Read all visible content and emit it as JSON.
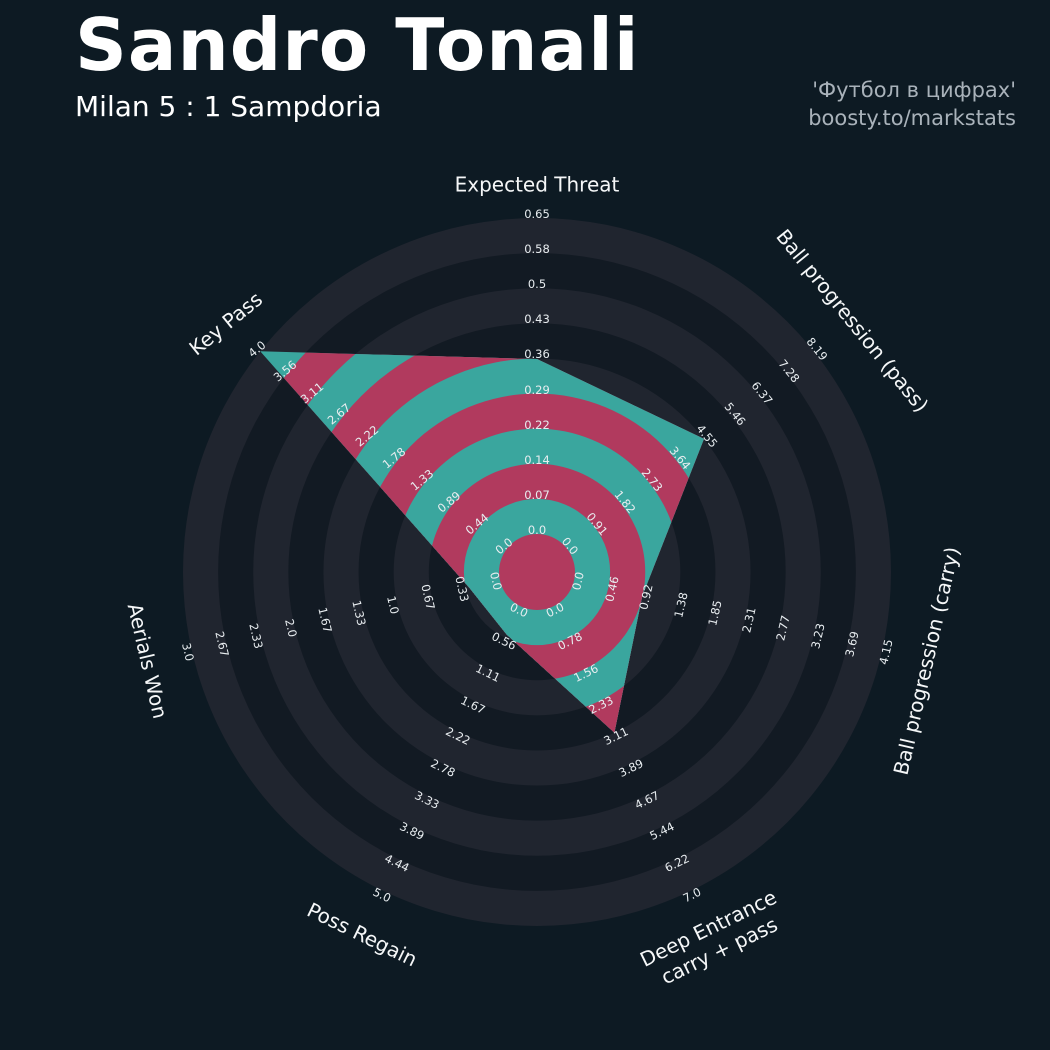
{
  "header": {
    "title": "Sandro Tonali",
    "subtitle": "Milan 5 : 1 Sampdoria",
    "credit_line1": "'Футбол в цифрах'",
    "credit_line2": "boosty.to/markstats"
  },
  "chart_data": {
    "type": "radar",
    "title": "Sandro Tonali",
    "subtitle": "Milan 5 : 1 Sampdoria",
    "ring_count": 9,
    "params": [
      {
        "label": "Expected Threat",
        "value": 0.36,
        "ticks": [
          "0.0",
          "0.07",
          "0.14",
          "0.22",
          "0.29",
          "0.36",
          "0.43",
          "0.5",
          "0.58",
          "0.65"
        ],
        "angle_deg": 90,
        "label_rotation": 0,
        "label_radius": 387
      },
      {
        "label": "Ball progression (pass)",
        "value": 4.55,
        "ticks": [
          "0.0",
          "0.91",
          "1.82",
          "2.73",
          "3.64",
          "4.55",
          "5.46",
          "6.37",
          "7.28",
          "8.19"
        ],
        "angle_deg": 38.57,
        "label_rotation": 51,
        "label_radius": 403
      },
      {
        "label": "Ball progression (carry)",
        "value": 0.92,
        "ticks": [
          "0.0",
          "0.46",
          "0.92",
          "1.38",
          "1.85",
          "2.31",
          "2.77",
          "3.23",
          "3.69",
          "4.15"
        ],
        "angle_deg": -12.86,
        "label_rotation": -77,
        "label_radius": 400
      },
      {
        "label": "Deep Entrance carry + pass",
        "label_lines": [
          "Deep Entrance",
          "carry + pass"
        ],
        "value": 3.11,
        "ticks": [
          "0.0",
          "0.78",
          "1.56",
          "2.33",
          "3.11",
          "3.89",
          "4.67",
          "5.44",
          "6.22",
          "7.0"
        ],
        "angle_deg": -64.29,
        "label_rotation": -26,
        "label_radius": 408
      },
      {
        "label": "Poss Regain",
        "value": 0.5,
        "ticks": [
          "0.0",
          "0.56",
          "1.11",
          "1.67",
          "2.22",
          "2.78",
          "3.33",
          "3.89",
          "4.44",
          "5.0"
        ],
        "angle_deg": -115.71,
        "label_rotation": 26,
        "label_radius": 403
      },
      {
        "label": "Aerials Won",
        "value": 0.3,
        "ticks": [
          "0.0",
          "0.33",
          "0.67",
          "1.0",
          "1.33",
          "1.67",
          "2.0",
          "2.33",
          "2.67",
          "3.0"
        ],
        "angle_deg": -167.14,
        "label_rotation": 77,
        "label_radius": 400
      },
      {
        "label": "Key Pass",
        "value": 4.0,
        "ticks": [
          "0.0",
          "0.44",
          "0.89",
          "1.33",
          "1.78",
          "2.22",
          "2.67",
          "3.11",
          "3.56",
          "4.0"
        ],
        "angle_deg": 141.43,
        "label_rotation": -39,
        "label_radius": 398
      }
    ],
    "colors": {
      "background": "#0d1a23",
      "ring_light": "#20252f",
      "ring_dark": "#121a23",
      "fill_teal": "#3aa69e",
      "fill_crimson": "#b13a5e",
      "tick_text": "#e8edf0",
      "axis_text": "#f5f7f8",
      "title_text": "#ffffff",
      "credits_text": "#a9b2ba"
    }
  }
}
